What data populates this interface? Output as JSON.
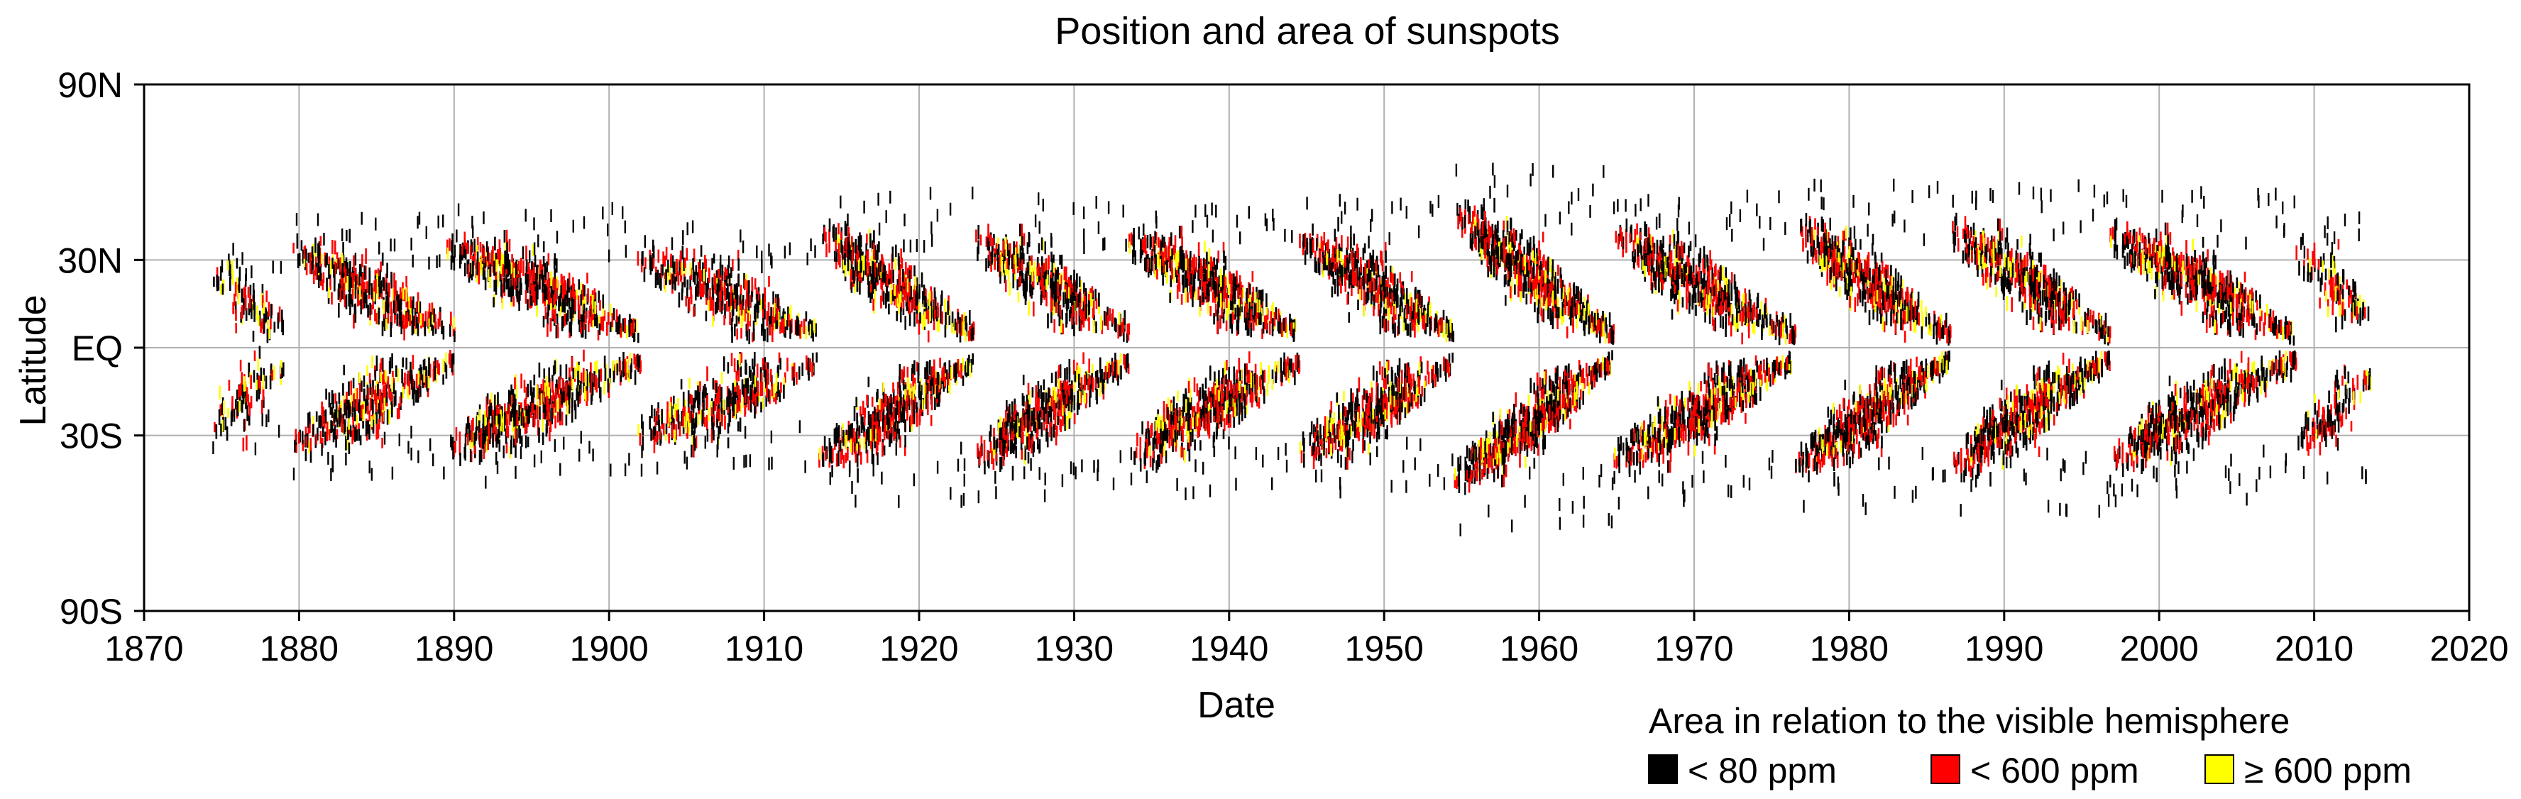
{
  "chart_data": {
    "type": "scatter",
    "title": "Position and area of sunspots",
    "xlabel": "Date",
    "ylabel": "Latitude",
    "xlim": [
      1870,
      2020
    ],
    "ylim": [
      -90,
      90
    ],
    "grid": true,
    "x_ticks": [
      {
        "value": 1870,
        "label": "1870"
      },
      {
        "value": 1880,
        "label": "1880"
      },
      {
        "value": 1890,
        "label": "1890"
      },
      {
        "value": 1900,
        "label": "1900"
      },
      {
        "value": 1910,
        "label": "1910"
      },
      {
        "value": 1920,
        "label": "1920"
      },
      {
        "value": 1930,
        "label": "1930"
      },
      {
        "value": 1940,
        "label": "1940"
      },
      {
        "value": 1950,
        "label": "1950"
      },
      {
        "value": 1960,
        "label": "1960"
      },
      {
        "value": 1970,
        "label": "1970"
      },
      {
        "value": 1980,
        "label": "1980"
      },
      {
        "value": 1990,
        "label": "1990"
      },
      {
        "value": 2000,
        "label": "2000"
      },
      {
        "value": 2010,
        "label": "2010"
      },
      {
        "value": 2020,
        "label": "2020"
      }
    ],
    "y_ticks": [
      {
        "value": 90,
        "label": "90N"
      },
      {
        "value": 30,
        "label": "30N"
      },
      {
        "value": 0,
        "label": "EQ"
      },
      {
        "value": -30,
        "label": "30S"
      },
      {
        "value": -90,
        "label": "90S"
      }
    ],
    "legend": {
      "title": "Area in relation to the visible hemisphere",
      "placement": "bottom-right",
      "entries": [
        {
          "label": "< 80 ppm",
          "color": "#000000"
        },
        {
          "label": "< 600 ppm",
          "color": "#ff0000"
        },
        {
          "label": "≥ 600 ppm",
          "color": "#ffff00"
        }
      ]
    },
    "series": [
      {
        "name": "< 80 ppm",
        "color": "#000000"
      },
      {
        "name": "< 600 ppm",
        "color": "#ff0000"
      },
      {
        "name": "≥ 600 ppm",
        "color": "#ffff00"
      }
    ],
    "cycles": [
      {
        "start": 1874.3,
        "end": 1879.0,
        "lat_start": 25,
        "lat_end": 7,
        "density": 0.45
      },
      {
        "start": 1879.5,
        "end": 1890.0,
        "lat_start": 32,
        "lat_end": 5,
        "density": 0.8
      },
      {
        "start": 1889.5,
        "end": 1902.0,
        "lat_start": 34,
        "lat_end": 5,
        "density": 0.95
      },
      {
        "start": 1901.8,
        "end": 1913.5,
        "lat_start": 30,
        "lat_end": 5,
        "density": 0.75
      },
      {
        "start": 1913.5,
        "end": 1923.5,
        "lat_start": 38,
        "lat_end": 5,
        "density": 1.0
      },
      {
        "start": 1923.5,
        "end": 1933.5,
        "lat_start": 37,
        "lat_end": 5,
        "density": 1.0
      },
      {
        "start": 1933.5,
        "end": 1944.5,
        "lat_start": 36,
        "lat_end": 5,
        "density": 1.05
      },
      {
        "start": 1944.5,
        "end": 1954.5,
        "lat_start": 36,
        "lat_end": 5,
        "density": 1.05
      },
      {
        "start": 1954.5,
        "end": 1964.8,
        "lat_start": 45,
        "lat_end": 4,
        "density": 1.3
      },
      {
        "start": 1964.8,
        "end": 1976.5,
        "lat_start": 38,
        "lat_end": 4,
        "density": 1.05
      },
      {
        "start": 1976.5,
        "end": 1986.5,
        "lat_start": 40,
        "lat_end": 4,
        "density": 1.15
      },
      {
        "start": 1986.5,
        "end": 1996.8,
        "lat_start": 40,
        "lat_end": 4,
        "density": 1.1
      },
      {
        "start": 1996.8,
        "end": 2008.8,
        "lat_start": 38,
        "lat_end": 4,
        "density": 1.05
      },
      {
        "start": 2008.8,
        "end": 2013.7,
        "lat_start": 32,
        "lat_end": 10,
        "density": 0.55
      }
    ]
  }
}
